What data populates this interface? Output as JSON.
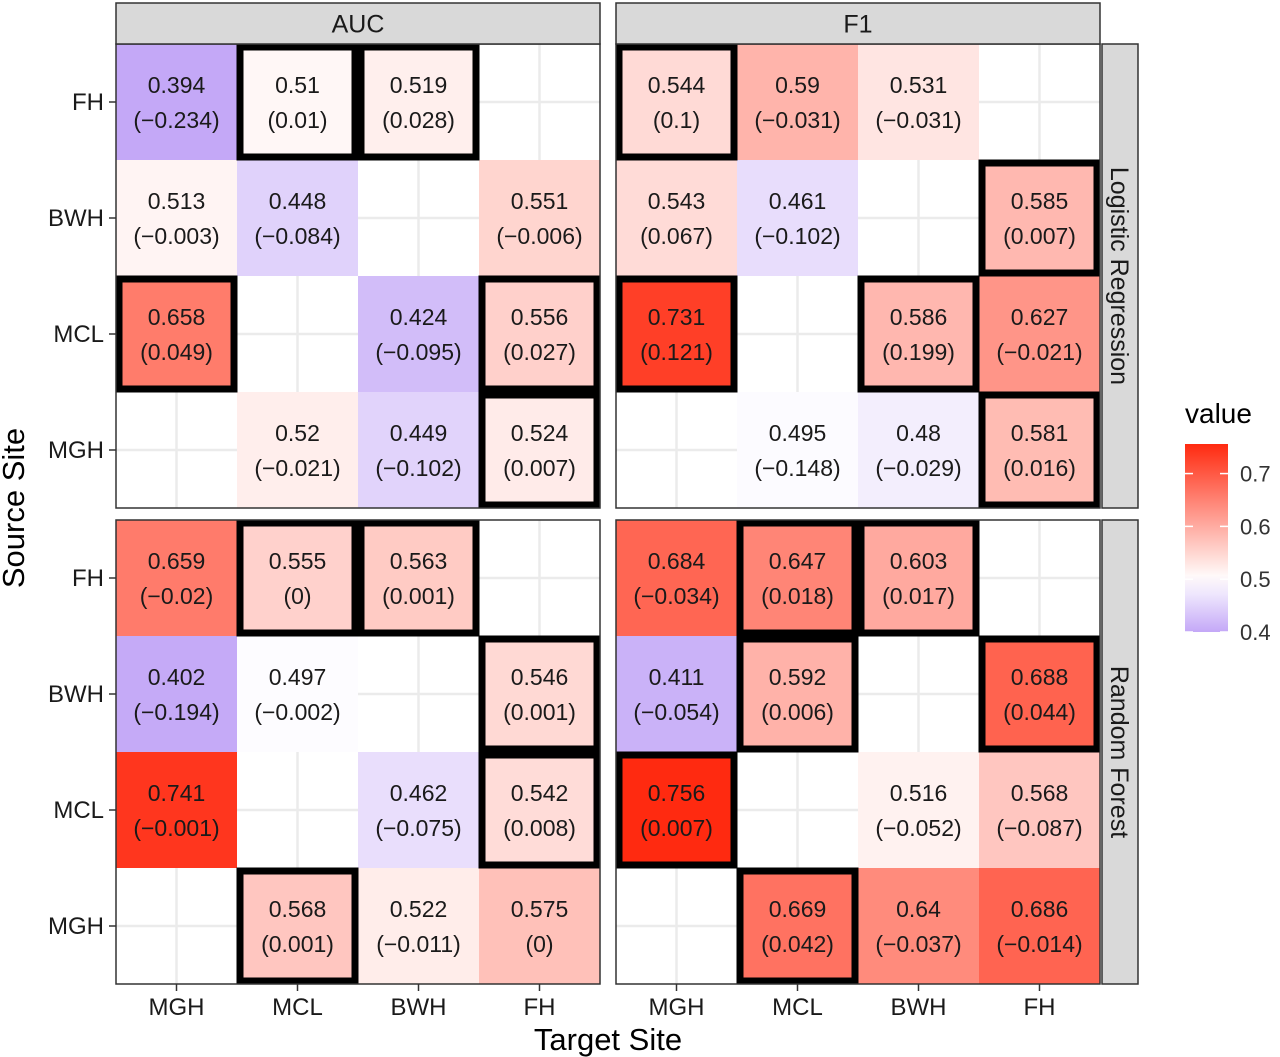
{
  "chart_data": {
    "type": "heatmap",
    "title": "",
    "xlabel": "Target Site",
    "ylabel": "Source Site",
    "x_categories": [
      "MGH",
      "MCL",
      "BWH",
      "FH"
    ],
    "y_categories": [
      "FH",
      "BWH",
      "MCL",
      "MGH"
    ],
    "column_facets": [
      "AUC",
      "F1"
    ],
    "row_facets": [
      "Logistic Regression",
      "Random Forest"
    ],
    "legend": {
      "title": "value",
      "ticks": [
        0.4,
        0.5,
        0.6,
        0.7
      ],
      "tick_labels": [
        "0.4",
        "0.5",
        "0.6",
        "0.7"
      ],
      "range": [
        0.4,
        0.756
      ],
      "low_color": "#c4a8f7",
      "mid_color": "#ffffff",
      "high_color": "#ff2a10",
      "midpoint": 0.5,
      "placement": "right"
    },
    "grid": true,
    "panels": [
      {
        "metric": "AUC",
        "model": "Logistic Regression",
        "cells": [
          {
            "source": "FH",
            "target": "MGH",
            "value": 0.394,
            "label": "0.394",
            "delta": "(−0.234)",
            "highlight": false
          },
          {
            "source": "FH",
            "target": "MCL",
            "value": 0.51,
            "label": "0.51",
            "delta": "(0.01)",
            "highlight": true
          },
          {
            "source": "FH",
            "target": "BWH",
            "value": 0.519,
            "label": "0.519",
            "delta": "(0.028)",
            "highlight": true
          },
          {
            "source": "BWH",
            "target": "MGH",
            "value": 0.513,
            "label": "0.513",
            "delta": "(−0.003)",
            "highlight": false
          },
          {
            "source": "BWH",
            "target": "MCL",
            "value": 0.448,
            "label": "0.448",
            "delta": "(−0.084)",
            "highlight": false
          },
          {
            "source": "BWH",
            "target": "FH",
            "value": 0.551,
            "label": "0.551",
            "delta": "(−0.006)",
            "highlight": false
          },
          {
            "source": "MCL",
            "target": "MGH",
            "value": 0.658,
            "label": "0.658",
            "delta": "(0.049)",
            "highlight": true
          },
          {
            "source": "MCL",
            "target": "BWH",
            "value": 0.424,
            "label": "0.424",
            "delta": "(−0.095)",
            "highlight": false
          },
          {
            "source": "MCL",
            "target": "FH",
            "value": 0.556,
            "label": "0.556",
            "delta": "(0.027)",
            "highlight": true
          },
          {
            "source": "MGH",
            "target": "MCL",
            "value": 0.52,
            "label": "0.52",
            "delta": "(−0.021)",
            "highlight": false
          },
          {
            "source": "MGH",
            "target": "BWH",
            "value": 0.449,
            "label": "0.449",
            "delta": "(−0.102)",
            "highlight": false
          },
          {
            "source": "MGH",
            "target": "FH",
            "value": 0.524,
            "label": "0.524",
            "delta": "(0.007)",
            "highlight": true
          }
        ]
      },
      {
        "metric": "F1",
        "model": "Logistic Regression",
        "cells": [
          {
            "source": "FH",
            "target": "MGH",
            "value": 0.544,
            "label": "0.544",
            "delta": "(0.1)",
            "highlight": true
          },
          {
            "source": "FH",
            "target": "MCL",
            "value": 0.59,
            "label": "0.59",
            "delta": "(−0.031)",
            "highlight": false
          },
          {
            "source": "FH",
            "target": "BWH",
            "value": 0.531,
            "label": "0.531",
            "delta": "(−0.031)",
            "highlight": false
          },
          {
            "source": "BWH",
            "target": "MGH",
            "value": 0.543,
            "label": "0.543",
            "delta": "(0.067)",
            "highlight": false
          },
          {
            "source": "BWH",
            "target": "MCL",
            "value": 0.461,
            "label": "0.461",
            "delta": "(−0.102)",
            "highlight": false
          },
          {
            "source": "BWH",
            "target": "FH",
            "value": 0.585,
            "label": "0.585",
            "delta": "(0.007)",
            "highlight": true
          },
          {
            "source": "MCL",
            "target": "MGH",
            "value": 0.731,
            "label": "0.731",
            "delta": "(0.121)",
            "highlight": true
          },
          {
            "source": "MCL",
            "target": "BWH",
            "value": 0.586,
            "label": "0.586",
            "delta": "(0.199)",
            "highlight": true
          },
          {
            "source": "MCL",
            "target": "FH",
            "value": 0.627,
            "label": "0.627",
            "delta": "(−0.021)",
            "highlight": false
          },
          {
            "source": "MGH",
            "target": "MCL",
            "value": 0.495,
            "label": "0.495",
            "delta": "(−0.148)",
            "highlight": false
          },
          {
            "source": "MGH",
            "target": "BWH",
            "value": 0.48,
            "label": "0.48",
            "delta": "(−0.029)",
            "highlight": false
          },
          {
            "source": "MGH",
            "target": "FH",
            "value": 0.581,
            "label": "0.581",
            "delta": "(0.016)",
            "highlight": true
          }
        ]
      },
      {
        "metric": "AUC",
        "model": "Random Forest",
        "cells": [
          {
            "source": "FH",
            "target": "MGH",
            "value": 0.659,
            "label": "0.659",
            "delta": "(−0.02)",
            "highlight": false
          },
          {
            "source": "FH",
            "target": "MCL",
            "value": 0.555,
            "label": "0.555",
            "delta": "(0)",
            "highlight": true
          },
          {
            "source": "FH",
            "target": "BWH",
            "value": 0.563,
            "label": "0.563",
            "delta": "(0.001)",
            "highlight": true
          },
          {
            "source": "BWH",
            "target": "MGH",
            "value": 0.402,
            "label": "0.402",
            "delta": "(−0.194)",
            "highlight": false
          },
          {
            "source": "BWH",
            "target": "MCL",
            "value": 0.497,
            "label": "0.497",
            "delta": "(−0.002)",
            "highlight": false
          },
          {
            "source": "BWH",
            "target": "FH",
            "value": 0.546,
            "label": "0.546",
            "delta": "(0.001)",
            "highlight": true
          },
          {
            "source": "MCL",
            "target": "MGH",
            "value": 0.741,
            "label": "0.741",
            "delta": "(−0.001)",
            "highlight": false
          },
          {
            "source": "MCL",
            "target": "BWH",
            "value": 0.462,
            "label": "0.462",
            "delta": "(−0.075)",
            "highlight": false
          },
          {
            "source": "MCL",
            "target": "FH",
            "value": 0.542,
            "label": "0.542",
            "delta": "(0.008)",
            "highlight": true
          },
          {
            "source": "MGH",
            "target": "MCL",
            "value": 0.568,
            "label": "0.568",
            "delta": "(0.001)",
            "highlight": true
          },
          {
            "source": "MGH",
            "target": "BWH",
            "value": 0.522,
            "label": "0.522",
            "delta": "(−0.011)",
            "highlight": false
          },
          {
            "source": "MGH",
            "target": "FH",
            "value": 0.575,
            "label": "0.575",
            "delta": "(0)",
            "highlight": false
          }
        ]
      },
      {
        "metric": "F1",
        "model": "Random Forest",
        "cells": [
          {
            "source": "FH",
            "target": "MGH",
            "value": 0.684,
            "label": "0.684",
            "delta": "(−0.034)",
            "highlight": false
          },
          {
            "source": "FH",
            "target": "MCL",
            "value": 0.647,
            "label": "0.647",
            "delta": "(0.018)",
            "highlight": true
          },
          {
            "source": "FH",
            "target": "BWH",
            "value": 0.603,
            "label": "0.603",
            "delta": "(0.017)",
            "highlight": true
          },
          {
            "source": "BWH",
            "target": "MGH",
            "value": 0.411,
            "label": "0.411",
            "delta": "(−0.054)",
            "highlight": false
          },
          {
            "source": "BWH",
            "target": "MCL",
            "value": 0.592,
            "label": "0.592",
            "delta": "(0.006)",
            "highlight": true
          },
          {
            "source": "BWH",
            "target": "FH",
            "value": 0.688,
            "label": "0.688",
            "delta": "(0.044)",
            "highlight": true
          },
          {
            "source": "MCL",
            "target": "MGH",
            "value": 0.756,
            "label": "0.756",
            "delta": "(0.007)",
            "highlight": true
          },
          {
            "source": "MCL",
            "target": "BWH",
            "value": 0.516,
            "label": "0.516",
            "delta": "(−0.052)",
            "highlight": false
          },
          {
            "source": "MCL",
            "target": "FH",
            "value": 0.568,
            "label": "0.568",
            "delta": "(−0.087)",
            "highlight": false
          },
          {
            "source": "MGH",
            "target": "MCL",
            "value": 0.669,
            "label": "0.669",
            "delta": "(0.042)",
            "highlight": true
          },
          {
            "source": "MGH",
            "target": "BWH",
            "value": 0.64,
            "label": "0.64",
            "delta": "(−0.037)",
            "highlight": false
          },
          {
            "source": "MGH",
            "target": "FH",
            "value": 0.686,
            "label": "0.686",
            "delta": "(−0.014)",
            "highlight": false
          }
        ]
      }
    ]
  }
}
